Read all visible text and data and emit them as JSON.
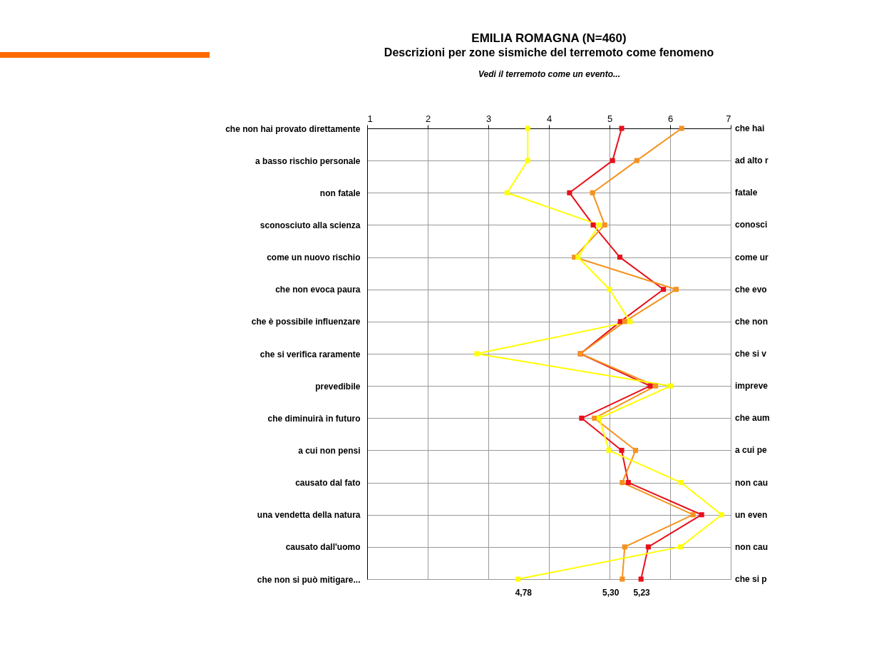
{
  "chart_data": {
    "type": "line",
    "orientation": "horizontal",
    "title": "EMILIA ROMAGNA (N=460)",
    "subtitle": "Descrizioni per zone sismiche del terremoto come fenomeno",
    "xlabel": "Vedi il terremoto come un evento...",
    "categories": [
      "che non hai provato direttamente",
      "a basso rischio personale",
      "non fatale",
      "sconosciuto alla scienza",
      "come un nuovo rischio",
      "che non evoca paura",
      "che è possibile influenzare",
      "che si verifica raramente",
      "prevedibile",
      "che diminuirà in futuro",
      "a cui non pensi",
      "causato dal fato",
      "una vendetta della natura",
      "causato dall'uomo",
      "che non si può mitigare..."
    ],
    "y2_categories": [
      "che hai",
      "ad alto r",
      "fatale",
      "conosci",
      "come ur",
      "che evo",
      "che non",
      "che si v",
      "impreve",
      "che aum",
      "a cui pe",
      "non cau",
      "un even",
      "non cau",
      "che si p"
    ],
    "series": [
      {
        "color": "#e8101a",
        "values": [
          5.2,
          5.05,
          4.34,
          4.73,
          5.17,
          5.89,
          5.18,
          4.52,
          5.67,
          4.54,
          5.2,
          5.31,
          6.52,
          5.64,
          5.52
        ]
      },
      {
        "color": "#f5921e",
        "values": [
          6.19,
          5.45,
          4.72,
          4.92,
          4.42,
          6.1,
          5.25,
          4.52,
          5.76,
          4.75,
          5.43,
          5.21,
          6.38,
          5.25,
          5.21
        ]
      },
      {
        "color": "#ffff00",
        "values": [
          3.65,
          3.65,
          3.31,
          4.83,
          4.48,
          5.0,
          5.34,
          2.81,
          6.01,
          4.83,
          4.99,
          6.18,
          6.85,
          6.17,
          3.49
        ]
      }
    ],
    "xlim": [
      1,
      7
    ],
    "xticks": [
      1,
      2,
      3,
      4,
      5,
      6,
      7
    ],
    "grid": true,
    "marker": "square",
    "line_style": "solid",
    "annotations": [
      "4,78",
      "5,30",
      "5,23"
    ]
  }
}
